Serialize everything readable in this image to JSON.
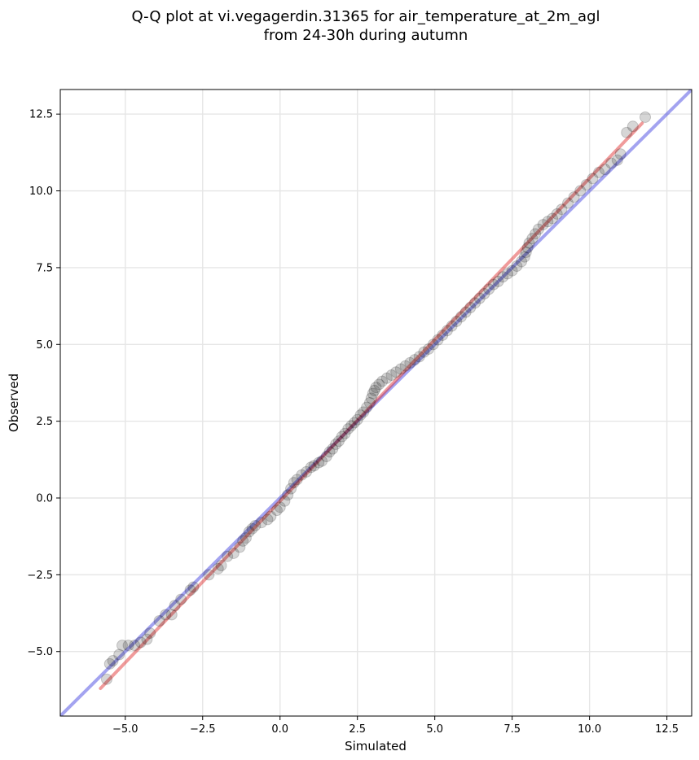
{
  "chart_data": {
    "type": "scatter",
    "title_lines": [
      "Q-Q plot at vi.vegagerdin.31365 for air_temperature_at_2m_agl",
      "from 24-30h during autumn"
    ],
    "xlabel": "Simulated",
    "ylabel": "Observed",
    "xlim": [
      -7.1,
      13.3
    ],
    "ylim": [
      -7.1,
      13.3
    ],
    "xticks": [
      -5.0,
      -2.5,
      0.0,
      2.5,
      5.0,
      7.5,
      10.0,
      12.5
    ],
    "yticks": [
      -5.0,
      -2.5,
      0.0,
      2.5,
      5.0,
      7.5,
      10.0,
      12.5
    ],
    "xtick_labels": [
      "−5.0",
      "−2.5",
      "0.0",
      "2.5",
      "5.0",
      "7.5",
      "10.0",
      "12.5"
    ],
    "ytick_labels": [
      "−5.0",
      "−2.5",
      "0.0",
      "2.5",
      "5.0",
      "7.5",
      "10.0",
      "12.5"
    ],
    "grid": true,
    "colors": {
      "points": "#000000",
      "identity_line": "#3333dd",
      "fit_line": "#dd2222",
      "grid": "#e6e6e6"
    },
    "identity_line": {
      "from": [
        -7.1,
        -7.1
      ],
      "to": [
        13.3,
        13.3
      ]
    },
    "fit_line": {
      "from": [
        -5.8,
        -6.2
      ],
      "to": [
        11.7,
        12.2
      ]
    },
    "points": [
      [
        -5.6,
        -5.9
      ],
      [
        -5.5,
        -5.4
      ],
      [
        -5.4,
        -5.3
      ],
      [
        -5.2,
        -5.1
      ],
      [
        -5.1,
        -4.8
      ],
      [
        -4.9,
        -4.8
      ],
      [
        -4.7,
        -4.8
      ],
      [
        -4.5,
        -4.7
      ],
      [
        -4.3,
        -4.6
      ],
      [
        -4.2,
        -4.4
      ],
      [
        -3.9,
        -4.0
      ],
      [
        -3.7,
        -3.8
      ],
      [
        -3.5,
        -3.8
      ],
      [
        -3.4,
        -3.5
      ],
      [
        -3.2,
        -3.3
      ],
      [
        -2.9,
        -3.0
      ],
      [
        -2.8,
        -2.9
      ],
      [
        -2.3,
        -2.5
      ],
      [
        -2.0,
        -2.3
      ],
      [
        -1.9,
        -2.2
      ],
      [
        -1.7,
        -1.9
      ],
      [
        -1.5,
        -1.8
      ],
      [
        -1.3,
        -1.6
      ],
      [
        -1.2,
        -1.4
      ],
      [
        -1.1,
        -1.3
      ],
      [
        -1.0,
        -1.1
      ],
      [
        -0.9,
        -1.0
      ],
      [
        -0.8,
        -0.9
      ],
      [
        -0.6,
        -0.8
      ],
      [
        -0.4,
        -0.7
      ],
      [
        -0.3,
        -0.6
      ],
      [
        -0.1,
        -0.4
      ],
      [
        0.0,
        -0.3
      ],
      [
        0.15,
        -0.1
      ],
      [
        0.25,
        0.1
      ],
      [
        0.35,
        0.3
      ],
      [
        0.45,
        0.5
      ],
      [
        0.55,
        0.6
      ],
      [
        0.7,
        0.75
      ],
      [
        0.85,
        0.85
      ],
      [
        1.0,
        1.0
      ],
      [
        1.1,
        1.05
      ],
      [
        1.25,
        1.15
      ],
      [
        1.35,
        1.2
      ],
      [
        1.5,
        1.35
      ],
      [
        1.6,
        1.5
      ],
      [
        1.7,
        1.6
      ],
      [
        1.8,
        1.75
      ],
      [
        1.9,
        1.85
      ],
      [
        2.0,
        2.0
      ],
      [
        2.1,
        2.1
      ],
      [
        2.2,
        2.25
      ],
      [
        2.3,
        2.35
      ],
      [
        2.4,
        2.45
      ],
      [
        2.5,
        2.55
      ],
      [
        2.6,
        2.7
      ],
      [
        2.7,
        2.8
      ],
      [
        2.8,
        2.95
      ],
      [
        2.9,
        3.1
      ],
      [
        2.95,
        3.25
      ],
      [
        3.0,
        3.4
      ],
      [
        3.05,
        3.5
      ],
      [
        3.1,
        3.6
      ],
      [
        3.2,
        3.7
      ],
      [
        3.3,
        3.8
      ],
      [
        3.45,
        3.9
      ],
      [
        3.6,
        4.0
      ],
      [
        3.75,
        4.1
      ],
      [
        3.9,
        4.2
      ],
      [
        4.05,
        4.3
      ],
      [
        4.2,
        4.4
      ],
      [
        4.35,
        4.5
      ],
      [
        4.5,
        4.6
      ],
      [
        4.65,
        4.75
      ],
      [
        4.8,
        4.85
      ],
      [
        4.95,
        5.0
      ],
      [
        5.1,
        5.15
      ],
      [
        5.25,
        5.3
      ],
      [
        5.4,
        5.45
      ],
      [
        5.55,
        5.6
      ],
      [
        5.7,
        5.75
      ],
      [
        5.85,
        5.9
      ],
      [
        6.0,
        6.05
      ],
      [
        6.15,
        6.2
      ],
      [
        6.3,
        6.35
      ],
      [
        6.45,
        6.5
      ],
      [
        6.6,
        6.65
      ],
      [
        6.75,
        6.8
      ],
      [
        6.9,
        6.95
      ],
      [
        7.05,
        7.05
      ],
      [
        7.2,
        7.2
      ],
      [
        7.35,
        7.3
      ],
      [
        7.5,
        7.4
      ],
      [
        7.65,
        7.55
      ],
      [
        7.8,
        7.7
      ],
      [
        7.9,
        7.85
      ],
      [
        7.95,
        8.0
      ],
      [
        8.0,
        8.15
      ],
      [
        8.05,
        8.3
      ],
      [
        8.15,
        8.45
      ],
      [
        8.25,
        8.6
      ],
      [
        8.35,
        8.75
      ],
      [
        8.5,
        8.9
      ],
      [
        8.65,
        9.0
      ],
      [
        8.8,
        9.1
      ],
      [
        8.95,
        9.25
      ],
      [
        9.1,
        9.4
      ],
      [
        9.3,
        9.6
      ],
      [
        9.5,
        9.8
      ],
      [
        9.7,
        10.0
      ],
      [
        9.9,
        10.2
      ],
      [
        10.1,
        10.4
      ],
      [
        10.3,
        10.6
      ],
      [
        10.5,
        10.7
      ],
      [
        10.7,
        10.9
      ],
      [
        10.9,
        11.0
      ],
      [
        11.0,
        11.2
      ],
      [
        11.2,
        11.9
      ],
      [
        11.4,
        12.1
      ],
      [
        11.8,
        12.4
      ]
    ]
  }
}
